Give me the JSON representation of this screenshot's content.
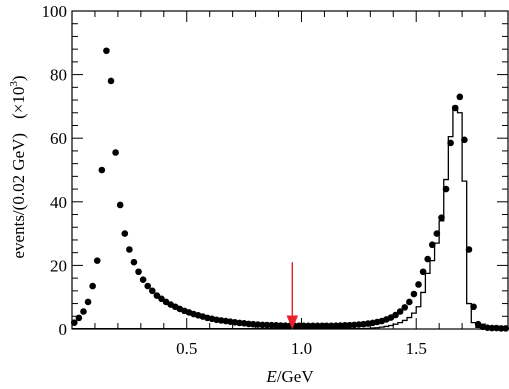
{
  "chart_data": {
    "type": "scatter",
    "xlabel_italic": "E",
    "xlabel_rest": "/GeV",
    "ylabel": "events/(0.02 GeV)",
    "ylabel_multiplier": "(×10",
    "ylabel_multiplier_exp": "3",
    "ylabel_multiplier_close": ")",
    "xlim": [
      0.0,
      1.9
    ],
    "ylim": [
      0,
      100
    ],
    "x_ticks": [
      0.5,
      1.0,
      1.5
    ],
    "x_tick_labels": [
      "0.5",
      "1.0",
      "1.5"
    ],
    "y_ticks": [
      0,
      20,
      40,
      60,
      80,
      100
    ],
    "y_tick_labels": [
      "0",
      "20",
      "40",
      "60",
      "80",
      "100"
    ],
    "grid": false,
    "legend": "none",
    "series": [
      {
        "style": "points",
        "color": "#000000",
        "x": [
          0.01,
          0.03,
          0.05,
          0.07,
          0.09,
          0.11,
          0.13,
          0.15,
          0.17,
          0.19,
          0.21,
          0.23,
          0.25,
          0.27,
          0.29,
          0.31,
          0.33,
          0.35,
          0.37,
          0.39,
          0.41,
          0.43,
          0.45,
          0.47,
          0.49,
          0.51,
          0.53,
          0.55,
          0.57,
          0.59,
          0.61,
          0.63,
          0.65,
          0.67,
          0.69,
          0.71,
          0.73,
          0.75,
          0.77,
          0.79,
          0.81,
          0.83,
          0.85,
          0.87,
          0.89,
          0.91,
          0.93,
          0.95,
          0.97,
          0.99,
          1.01,
          1.03,
          1.05,
          1.07,
          1.09,
          1.11,
          1.13,
          1.15,
          1.17,
          1.19,
          1.21,
          1.23,
          1.25,
          1.27,
          1.29,
          1.31,
          1.33,
          1.35,
          1.37,
          1.39,
          1.41,
          1.43,
          1.45,
          1.47,
          1.49,
          1.51,
          1.53,
          1.55,
          1.57,
          1.59,
          1.61,
          1.63,
          1.65,
          1.67,
          1.69,
          1.71,
          1.73,
          1.75,
          1.77,
          1.79,
          1.81,
          1.83,
          1.85,
          1.87,
          1.89
        ],
        "y": [
          2.0,
          3.5,
          5.5,
          8.5,
          13.5,
          21.5,
          50.0,
          87.5,
          78.0,
          55.5,
          39.0,
          30.0,
          25.0,
          21.0,
          18.0,
          15.5,
          13.5,
          12.0,
          10.5,
          9.5,
          8.5,
          7.7,
          7.0,
          6.3,
          5.7,
          5.2,
          4.7,
          4.3,
          3.9,
          3.5,
          3.2,
          2.9,
          2.7,
          2.5,
          2.3,
          2.1,
          1.9,
          1.8,
          1.6,
          1.5,
          1.4,
          1.3,
          1.25,
          1.2,
          1.15,
          1.1,
          1.05,
          1.0,
          1.0,
          1.0,
          1.0,
          1.0,
          1.0,
          1.0,
          1.0,
          1.0,
          1.0,
          1.05,
          1.1,
          1.15,
          1.2,
          1.3,
          1.4,
          1.5,
          1.7,
          1.9,
          2.2,
          2.5,
          3.0,
          3.6,
          4.4,
          5.5,
          6.8,
          8.5,
          11.0,
          14.0,
          18.0,
          22.0,
          26.5,
          30.0,
          35.0,
          44.0,
          58.5,
          69.5,
          73.0,
          59.5,
          25.0,
          7.0,
          1.5,
          0.7,
          0.4,
          0.3,
          0.3,
          0.2,
          0.2
        ]
      },
      {
        "style": "histogram",
        "color": "#000000",
        "x": [
          0.01,
          0.03,
          0.05,
          0.07,
          0.09,
          0.11,
          0.13,
          0.15,
          0.17,
          0.19,
          0.21,
          0.23,
          0.25,
          0.27,
          0.29,
          0.31,
          0.33,
          0.35,
          0.37,
          0.39,
          0.41,
          0.43,
          0.45,
          0.47,
          0.49,
          0.51,
          0.53,
          0.55,
          0.57,
          0.59,
          0.61,
          0.63,
          0.65,
          0.67,
          0.69,
          0.71,
          0.73,
          0.75,
          0.77,
          0.79,
          0.81,
          0.83,
          0.85,
          0.87,
          0.89,
          0.91,
          0.93,
          0.95,
          0.97,
          0.99,
          1.01,
          1.03,
          1.05,
          1.07,
          1.09,
          1.11,
          1.13,
          1.15,
          1.17,
          1.19,
          1.21,
          1.23,
          1.25,
          1.27,
          1.29,
          1.31,
          1.33,
          1.35,
          1.37,
          1.39,
          1.41,
          1.43,
          1.45,
          1.47,
          1.49,
          1.51,
          1.53,
          1.55,
          1.57,
          1.59,
          1.61,
          1.63,
          1.65,
          1.67,
          1.69,
          1.71,
          1.73,
          1.75,
          1.77,
          1.79,
          1.81,
          1.83,
          1.85,
          1.87,
          1.89
        ],
        "y": [
          0.1,
          0.1,
          0.1,
          0.1,
          0.1,
          0.1,
          0.1,
          0.1,
          0.1,
          0.1,
          0.1,
          0.1,
          0.1,
          0.1,
          0.1,
          0.1,
          0.1,
          0.1,
          0.1,
          0.1,
          0.1,
          0.1,
          0.1,
          0.1,
          0.1,
          0.1,
          0.1,
          0.1,
          0.1,
          0.1,
          0.1,
          0.1,
          0.1,
          0.1,
          0.1,
          0.1,
          0.1,
          0.1,
          0.1,
          0.1,
          0.1,
          0.1,
          0.1,
          0.1,
          0.1,
          0.1,
          0.1,
          0.1,
          0.1,
          0.1,
          0.1,
          0.1,
          0.1,
          0.1,
          0.1,
          0.1,
          0.1,
          0.1,
          0.1,
          0.1,
          0.1,
          0.1,
          0.1,
          0.1,
          0.2,
          0.3,
          0.4,
          0.6,
          0.8,
          1.1,
          1.5,
          2.0,
          2.7,
          3.6,
          5.0,
          7.0,
          11.5,
          17.5,
          21.5,
          27.0,
          34.0,
          47.0,
          60.5,
          70.0,
          68.0,
          46.5,
          8.0,
          2.0,
          0.5,
          0.2,
          0.1,
          0.1,
          0.1,
          0.1,
          0.1
        ]
      }
    ],
    "annotations": [
      {
        "type": "arrow",
        "color": "#e8202a",
        "x": 0.96,
        "y_from": 21,
        "y_to": 0.3
      }
    ]
  }
}
